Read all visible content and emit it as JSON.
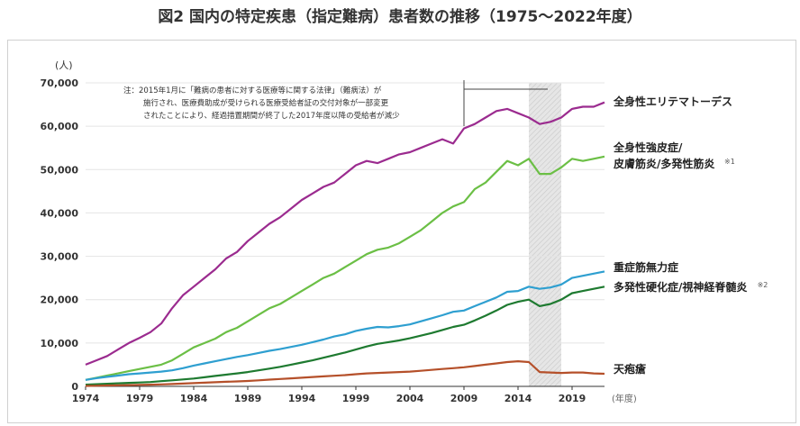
{
  "page": {
    "title": "図2 国内の特定疾患（指定難病）患者数の推移（1975～2022年度）"
  },
  "chart_data": {
    "type": "line",
    "title": "図2 国内の特定疾患（指定難病）患者数の推移（1975～2022年度）",
    "y_unit": "(人)",
    "x_unit": "(年度)",
    "xlim": [
      1974,
      2022
    ],
    "ylim": [
      0,
      70000
    ],
    "x_ticks": [
      "1974",
      "1979",
      "1984",
      "1989",
      "1994",
      "1999",
      "2004",
      "2009",
      "2014",
      "2019"
    ],
    "y_ticks": [
      "0",
      "10,000",
      "20,000",
      "30,000",
      "40,000",
      "50,000",
      "60,000",
      "70,000"
    ],
    "grid": "horizontal",
    "shaded_period": [
      2015,
      2018
    ],
    "note": "注：2015年1月に「難病の患者に対する医療等に関する法律」（難病法）が施行され、医療費助成が受けられる医療受給者証の交付対象が一部変更されたことにより、経過措置期間が終了した2017年度以降の受給者が減少",
    "note_lines": [
      "注：2015年1月に「難病の患者に対する医療等に関する法律」（難病法）が",
      "施行され、医療費助成が受けられる医療受給者証の交付対象が一部変更",
      "されたことにより、経過措置期間が終了した2017年度以降の受給者が減少"
    ],
    "series": [
      {
        "name": "全身性エリテマトーデス",
        "label_lines": [
          "全身性エリテマトーデス"
        ],
        "color": "#9b2b8f",
        "x": [
          1974,
          1975,
          1976,
          1977,
          1978,
          1979,
          1980,
          1981,
          1982,
          1983,
          1984,
          1985,
          1986,
          1987,
          1988,
          1989,
          1990,
          1991,
          1992,
          1993,
          1994,
          1995,
          1996,
          1997,
          1998,
          1999,
          2000,
          2001,
          2002,
          2003,
          2004,
          2005,
          2006,
          2007,
          2008,
          2009,
          2010,
          2011,
          2012,
          2013,
          2014,
          2015,
          2016,
          2017,
          2018,
          2019,
          2020,
          2021,
          2022
        ],
        "values": [
          5000,
          6000,
          7000,
          8500,
          10000,
          11200,
          12500,
          14500,
          18000,
          21000,
          23000,
          25000,
          27000,
          29500,
          31000,
          33500,
          35500,
          37500,
          39000,
          41000,
          43000,
          44500,
          46000,
          47000,
          49000,
          51000,
          52000,
          51500,
          52500,
          53500,
          54000,
          55000,
          56000,
          57000,
          56000,
          59500,
          60500,
          62000,
          63500,
          64000,
          63000,
          62000,
          60500,
          61000,
          62000,
          64000,
          64500,
          64500,
          65500
        ]
      },
      {
        "name": "全身性強皮症/皮膚筋炎/多発性筋炎",
        "label_lines": [
          "全身性強皮症/",
          "皮膚筋炎/多発性筋炎"
        ],
        "sup": "※1",
        "color": "#6bbf45",
        "x": [
          1974,
          1975,
          1976,
          1977,
          1978,
          1979,
          1980,
          1981,
          1982,
          1983,
          1984,
          1985,
          1986,
          1987,
          1988,
          1989,
          1990,
          1991,
          1992,
          1993,
          1994,
          1995,
          1996,
          1997,
          1998,
          1999,
          2000,
          2001,
          2002,
          2003,
          2004,
          2005,
          2006,
          2007,
          2008,
          2009,
          2010,
          2011,
          2012,
          2013,
          2014,
          2015,
          2016,
          2017,
          2018,
          2019,
          2020,
          2021,
          2022
        ],
        "values": [
          1500,
          2000,
          2500,
          3000,
          3500,
          4000,
          4500,
          5000,
          6000,
          7500,
          9000,
          10000,
          11000,
          12500,
          13500,
          15000,
          16500,
          18000,
          19000,
          20500,
          22000,
          23500,
          25000,
          26000,
          27500,
          29000,
          30500,
          31500,
          32000,
          33000,
          34500,
          36000,
          38000,
          40000,
          41500,
          42500,
          45500,
          47000,
          49500,
          52000,
          51000,
          52500,
          49000,
          49000,
          50500,
          52500,
          52000,
          52500,
          53000
        ]
      },
      {
        "name": "重症筋無力症",
        "label_lines": [
          "重症筋無力症"
        ],
        "color": "#2e9fd0",
        "x": [
          1974,
          1975,
          1976,
          1977,
          1978,
          1979,
          1980,
          1981,
          1982,
          1983,
          1984,
          1985,
          1986,
          1987,
          1988,
          1989,
          1990,
          1991,
          1992,
          1993,
          1994,
          1995,
          1996,
          1997,
          1998,
          1999,
          2000,
          2001,
          2002,
          2003,
          2004,
          2005,
          2006,
          2007,
          2008,
          2009,
          2010,
          2011,
          2012,
          2013,
          2014,
          2015,
          2016,
          2017,
          2018,
          2019,
          2020,
          2021,
          2022
        ],
        "values": [
          1500,
          1900,
          2200,
          2500,
          2800,
          3000,
          3200,
          3400,
          3700,
          4200,
          4800,
          5300,
          5800,
          6300,
          6800,
          7200,
          7700,
          8200,
          8600,
          9100,
          9600,
          10200,
          10800,
          11500,
          12000,
          12800,
          13300,
          13700,
          13600,
          13900,
          14300,
          15000,
          15700,
          16400,
          17200,
          17500,
          18500,
          19500,
          20500,
          21800,
          22000,
          23000,
          22500,
          22800,
          23500,
          25000,
          25500,
          26000,
          26500
        ]
      },
      {
        "name": "多発性硬化症/視神経脊髄炎",
        "label_lines": [
          "多発性硬化症/視神経脊髄炎"
        ],
        "sup": "※2",
        "color": "#1e7a30",
        "x": [
          1974,
          1975,
          1976,
          1977,
          1978,
          1979,
          1980,
          1981,
          1982,
          1983,
          1984,
          1985,
          1986,
          1987,
          1988,
          1989,
          1990,
          1991,
          1992,
          1993,
          1994,
          1995,
          1996,
          1997,
          1998,
          1999,
          2000,
          2001,
          2002,
          2003,
          2004,
          2005,
          2006,
          2007,
          2008,
          2009,
          2010,
          2011,
          2012,
          2013,
          2014,
          2015,
          2016,
          2017,
          2018,
          2019,
          2020,
          2021,
          2022
        ],
        "values": [
          400,
          500,
          600,
          700,
          800,
          900,
          1000,
          1200,
          1400,
          1600,
          1800,
          2100,
          2400,
          2700,
          3000,
          3300,
          3700,
          4100,
          4500,
          5000,
          5500,
          6000,
          6600,
          7200,
          7800,
          8500,
          9200,
          9800,
          10200,
          10600,
          11100,
          11700,
          12300,
          13000,
          13700,
          14200,
          15200,
          16300,
          17500,
          18800,
          19500,
          20000,
          18500,
          19000,
          20000,
          21500,
          22000,
          22500,
          23000
        ]
      },
      {
        "name": "天疱瘡",
        "label_lines": [
          "天疱瘡"
        ],
        "color": "#b5502a",
        "x": [
          1974,
          1975,
          1976,
          1977,
          1978,
          1979,
          1980,
          1981,
          1982,
          1983,
          1984,
          1985,
          1986,
          1987,
          1988,
          1989,
          1990,
          1991,
          1992,
          1993,
          1994,
          1995,
          1996,
          1997,
          1998,
          1999,
          2000,
          2001,
          2002,
          2003,
          2004,
          2005,
          2006,
          2007,
          2008,
          2009,
          2010,
          2011,
          2012,
          2013,
          2014,
          2015,
          2016,
          2017,
          2018,
          2019,
          2020,
          2021,
          2022
        ],
        "values": [
          100,
          150,
          200,
          250,
          300,
          350,
          400,
          450,
          550,
          650,
          750,
          850,
          950,
          1050,
          1150,
          1250,
          1400,
          1550,
          1700,
          1850,
          2000,
          2150,
          2300,
          2450,
          2600,
          2800,
          3000,
          3100,
          3200,
          3300,
          3400,
          3600,
          3800,
          4000,
          4200,
          4400,
          4700,
          5000,
          5300,
          5600,
          5800,
          5600,
          3300,
          3200,
          3100,
          3200,
          3200,
          3000,
          2900
        ]
      }
    ]
  }
}
